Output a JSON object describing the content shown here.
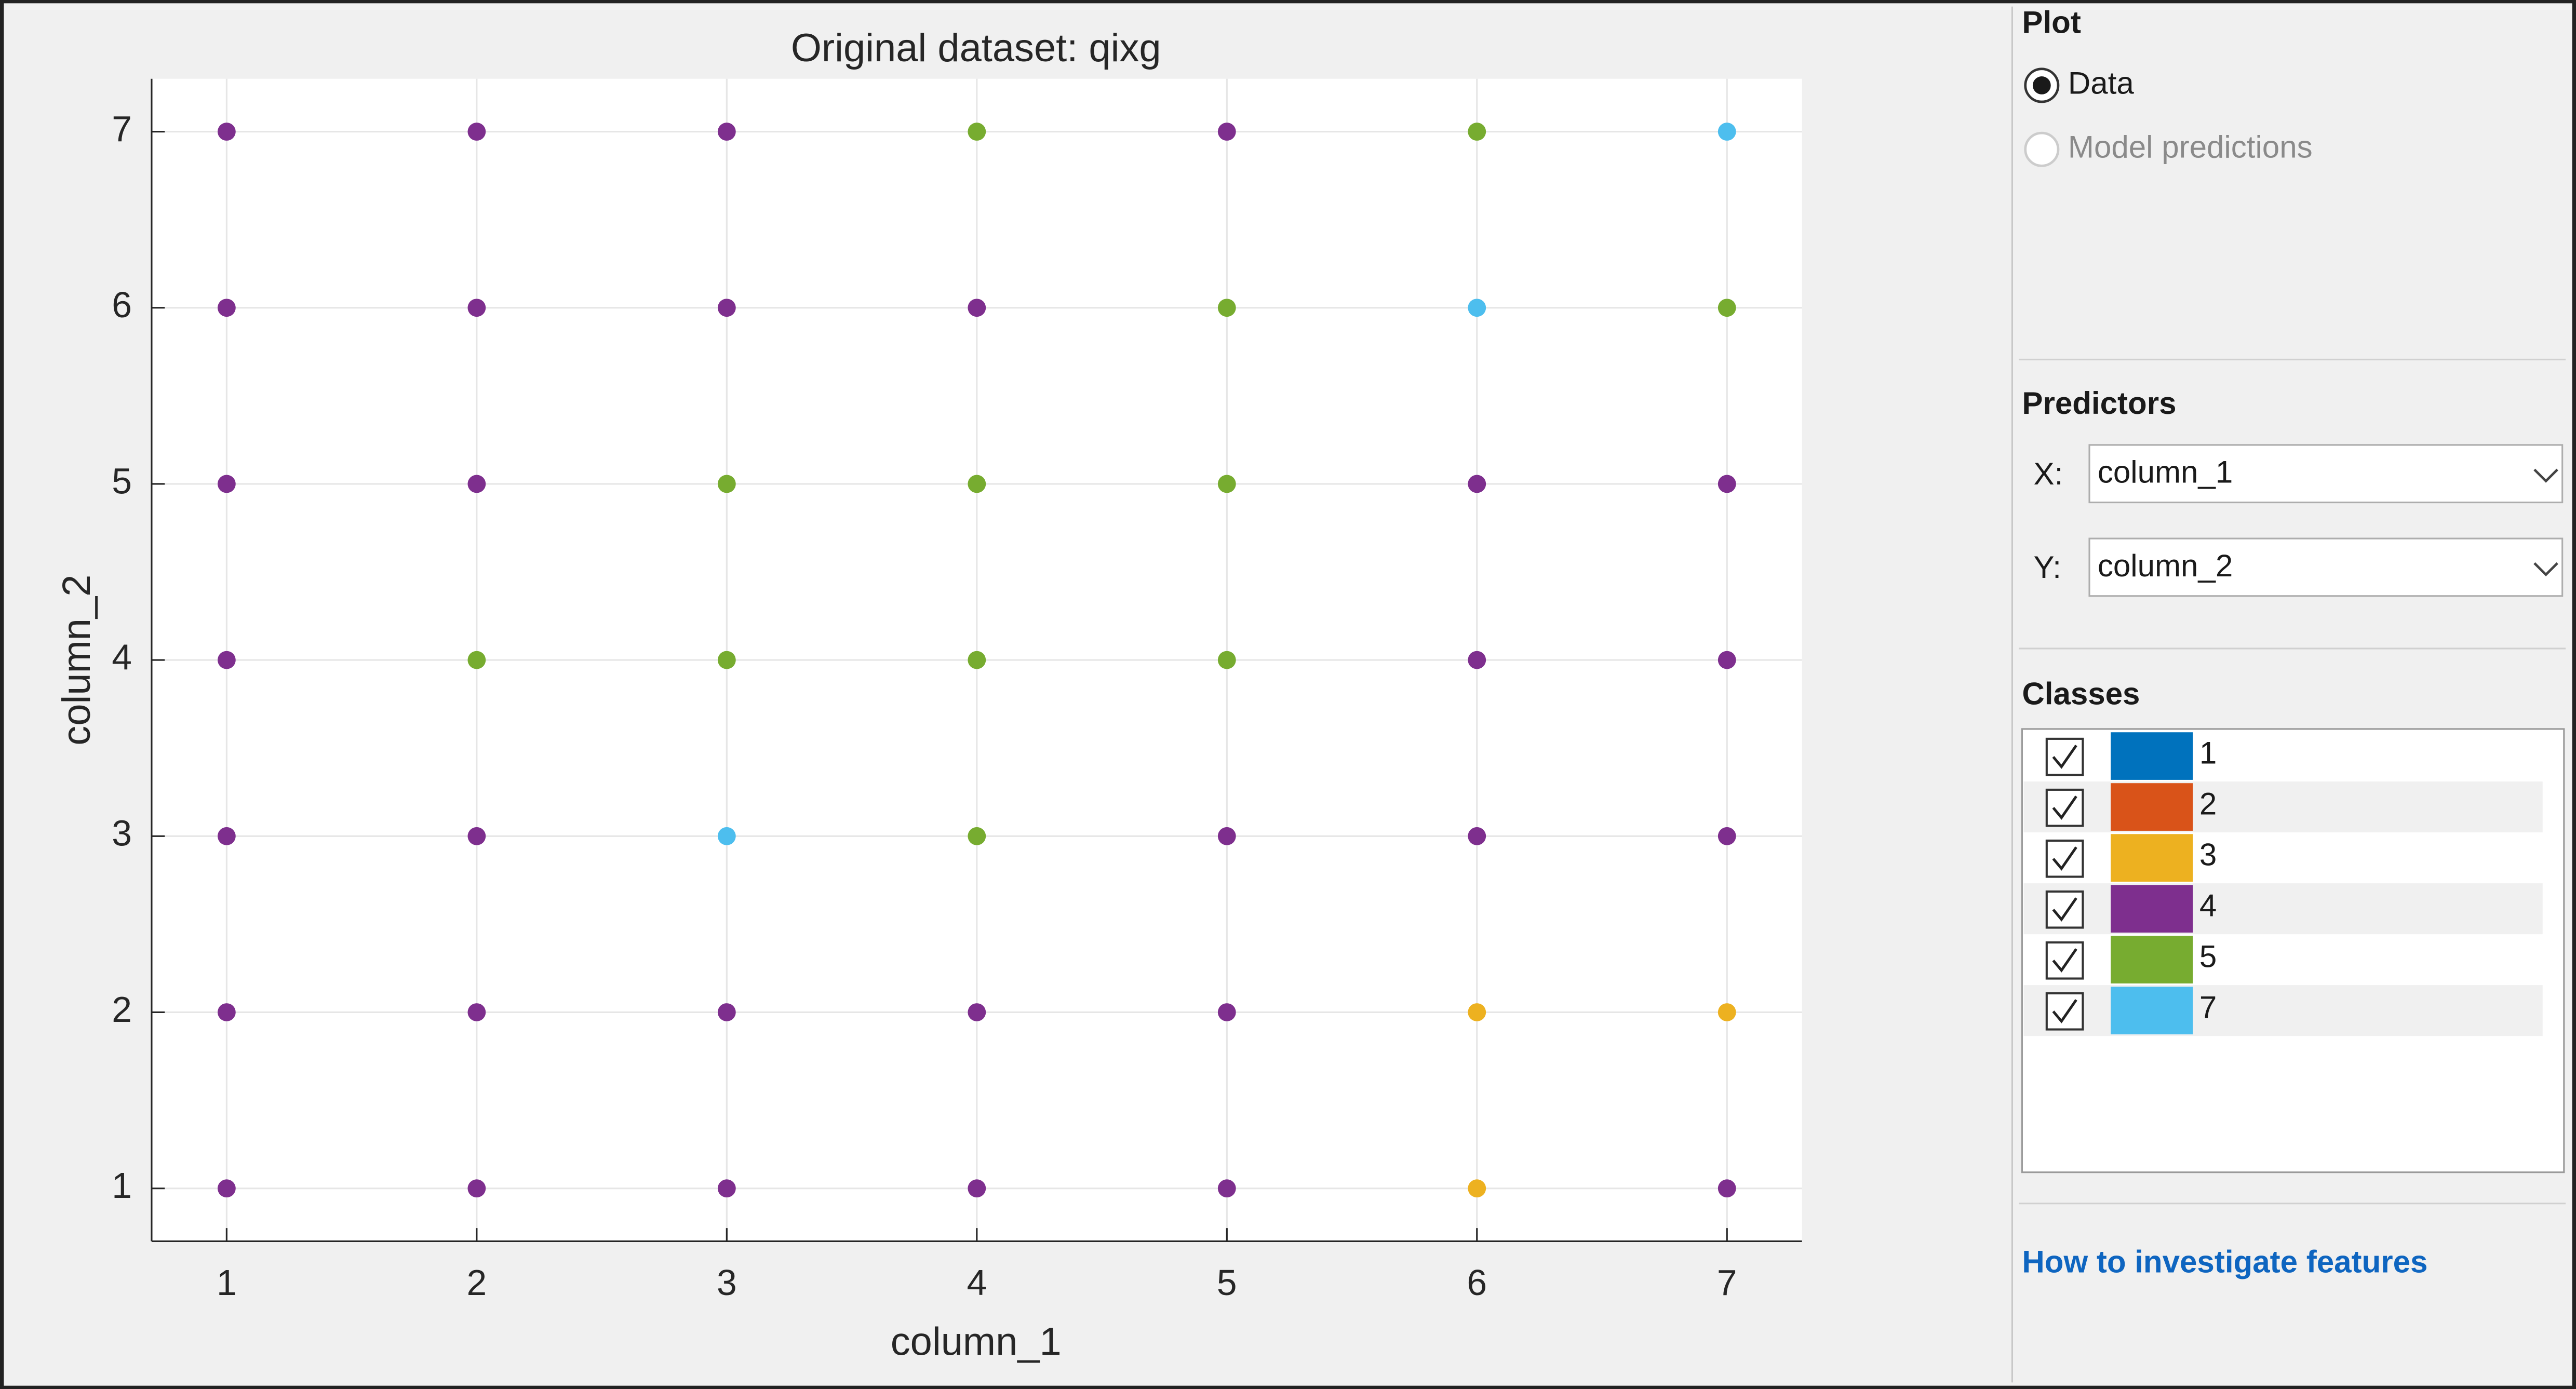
{
  "chart_data": {
    "type": "scatter",
    "title": "Original dataset: qixg",
    "xlabel": "column_1",
    "ylabel": "column_2",
    "xlim": [
      0.7,
      7.3
    ],
    "ylim": [
      0.7,
      7.3
    ],
    "xticks": [
      1,
      2,
      3,
      4,
      5,
      6,
      7
    ],
    "yticks": [
      1,
      2,
      3,
      4,
      5,
      6,
      7
    ],
    "grid": true,
    "series": [
      {
        "name": "1",
        "color": "#0072bd",
        "x": [],
        "y": []
      },
      {
        "name": "2",
        "color": "#d95319",
        "x": [],
        "y": []
      },
      {
        "name": "3",
        "color": "#edb120",
        "x": [
          6,
          7,
          6
        ],
        "y": [
          2,
          2,
          1
        ]
      },
      {
        "name": "4",
        "color": "#7e2f8e",
        "x": [
          1,
          2,
          3,
          5,
          1,
          2,
          3,
          4,
          1,
          2,
          6,
          7,
          1,
          6,
          7,
          1,
          2,
          5,
          6,
          7,
          1,
          2,
          3,
          4,
          5,
          1,
          2,
          3,
          4,
          5,
          7
        ],
        "y": [
          7,
          7,
          7,
          7,
          6,
          6,
          6,
          6,
          5,
          5,
          5,
          5,
          4,
          4,
          4,
          3,
          3,
          3,
          3,
          3,
          2,
          2,
          2,
          2,
          2,
          1,
          1,
          1,
          1,
          1,
          1
        ]
      },
      {
        "name": "5",
        "color": "#77ac30",
        "x": [
          4,
          6,
          5,
          7,
          3,
          4,
          5,
          2,
          3,
          4,
          5,
          4
        ],
        "y": [
          7,
          7,
          6,
          6,
          5,
          5,
          5,
          4,
          4,
          4,
          4,
          3
        ]
      },
      {
        "name": "7",
        "color": "#4dbeee",
        "x": [
          7,
          6,
          3
        ],
        "y": [
          7,
          6,
          3
        ]
      }
    ]
  },
  "panel": {
    "plot_title": "Plot",
    "plot_options": [
      "Data",
      "Model predictions"
    ],
    "predictors_title": "Predictors",
    "x_label": "X:",
    "x_value": "column_1",
    "y_label": "Y:",
    "y_value": "column_2",
    "classes_title": "Classes",
    "help_link": "How to investigate features"
  }
}
